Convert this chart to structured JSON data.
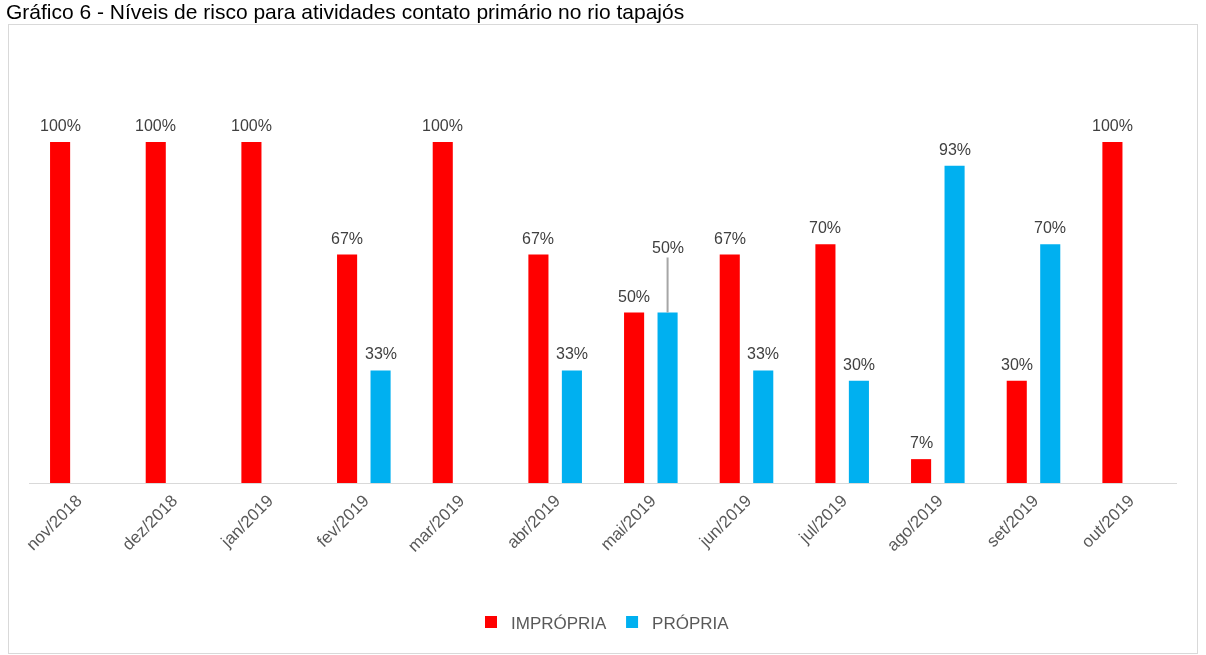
{
  "chart_data": {
    "type": "bar",
    "title": "Gráfico 6 - Níveis de risco para atividades contato primário no rio tapajós",
    "categories": [
      "nov/2018",
      "dez/2018",
      "jan/2019",
      "fev/2019",
      "mar/2019",
      "abr/2019",
      "mai/2019",
      "jun/2019",
      "jul/2019",
      "ago/2019",
      "set/2019",
      "out/2019"
    ],
    "series": [
      {
        "name": "IMPRÓPRIA",
        "color": "#ff0000",
        "values": [
          100,
          100,
          100,
          67,
          100,
          67,
          50,
          67,
          70,
          7,
          30,
          100
        ],
        "value_labels": [
          "100%",
          "100%",
          "100%",
          "67%",
          "100%",
          "67%",
          "50%",
          "67%",
          "70%",
          "7%",
          "30%",
          "100%"
        ]
      },
      {
        "name": "PRÓPRIA",
        "color": "#00b0f0",
        "values": [
          null,
          null,
          null,
          33,
          null,
          33,
          50,
          33,
          30,
          93,
          70,
          null
        ],
        "value_labels": [
          null,
          null,
          null,
          "33%",
          null,
          "33%",
          "50%",
          "33%",
          "30%",
          "93%",
          "70%",
          null
        ]
      }
    ],
    "legend": "bottom",
    "grid": false,
    "tick_labels": "x"
  }
}
